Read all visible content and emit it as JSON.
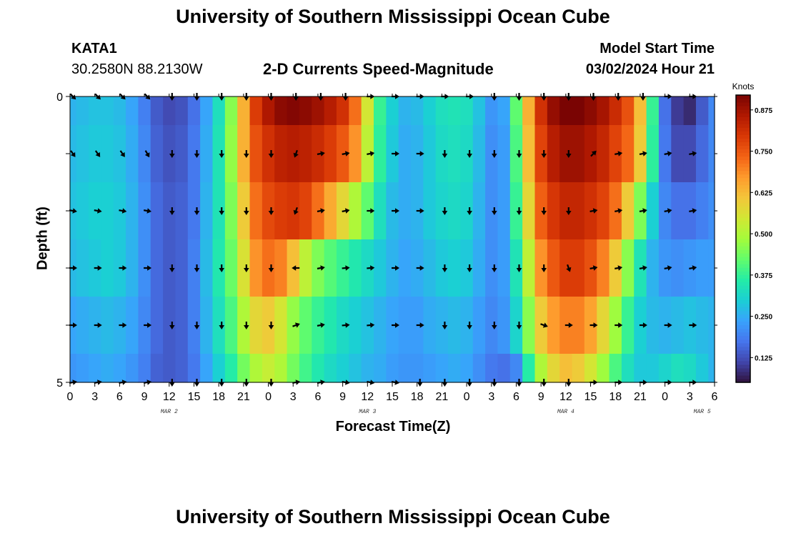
{
  "header": {
    "title": "University of Southern Mississippi Ocean Cube",
    "station": "KATA1",
    "coordinates": "30.2580N  88.2130W",
    "subtitle": "2-D Currents Speed-Magnitude",
    "model_start_label": "Model Start Time",
    "model_start_value": "03/02/2024 Hour 21"
  },
  "footer": {
    "title": "University of Southern Mississippi Ocean Cube"
  },
  "colors": {
    "scale": [
      "#30123b",
      "#4145ab",
      "#4675ed",
      "#39a2fc",
      "#1bcfd4",
      "#24eca6",
      "#61fc6c",
      "#a4fc3b",
      "#d1e834",
      "#f3c63a",
      "#fe9b2d",
      "#f36315",
      "#d93806",
      "#b11901",
      "#7a0403"
    ]
  },
  "chart_data": {
    "type": "heatmap",
    "title": "2-D Currents Speed-Magnitude",
    "xlabel": "Forecast Time(Z)",
    "ylabel": "Depth (ft)",
    "colorbar_label": "Knots",
    "colorbar_ticks": [
      "0.125",
      "0.250",
      "0.375",
      "0.500",
      "0.625",
      "0.750",
      "0.875"
    ],
    "colorbar_values": [
      0.125,
      0.25,
      0.375,
      0.5,
      0.625,
      0.75,
      0.875
    ],
    "crange": [
      0.05,
      0.92
    ],
    "y_ticks": [
      "0",
      "5"
    ],
    "ylim": [
      0,
      5
    ],
    "x_tick_labels": [
      "0",
      "3",
      "6",
      "9",
      "12",
      "15",
      "18",
      "21",
      "0",
      "3",
      "6",
      "9",
      "12",
      "15",
      "18",
      "21",
      "0",
      "3",
      "6",
      "9",
      "12",
      "15",
      "18",
      "21",
      "0",
      "3",
      "6"
    ],
    "date_labels": [
      {
        "label": "MAR 2",
        "index": 4
      },
      {
        "label": "MAR 3",
        "index": 12
      },
      {
        "label": "MAR 4",
        "index": 20
      },
      {
        "label": "MAR 5",
        "index": 25.5
      }
    ],
    "time_hours": [
      0,
      1.5,
      3,
      4.5,
      6,
      7.5,
      9,
      10.5,
      12,
      13.5,
      15,
      16.5,
      18,
      19.5,
      21,
      22.5,
      24,
      25.5,
      27,
      28.5,
      30,
      31.5,
      33,
      34.5,
      36,
      37.5,
      39,
      40.5,
      42,
      43.5,
      45,
      46.5,
      48,
      49.5,
      51,
      52.5,
      54,
      55.5,
      57,
      58.5,
      60,
      61.5,
      63,
      64.5,
      66,
      67.5,
      69,
      70.5,
      72,
      73.5,
      75,
      76.5,
      78
    ],
    "depth_layers": [
      "0-0.5",
      "0.5-1.5",
      "1.5-2.5",
      "2.5-3.5",
      "3.5-4.5",
      "4.5-5"
    ],
    "speed_knots": [
      [
        0.26,
        0.27,
        0.28,
        0.28,
        0.27,
        0.24,
        0.19,
        0.14,
        0.12,
        0.13,
        0.17,
        0.24,
        0.33,
        0.46,
        0.64,
        0.79,
        0.86,
        0.9,
        0.91,
        0.9,
        0.88,
        0.85,
        0.81,
        0.72,
        0.55,
        0.38,
        0.3,
        0.26,
        0.27,
        0.3,
        0.33,
        0.34,
        0.33,
        0.28,
        0.22,
        0.24,
        0.42,
        0.64,
        0.81,
        0.89,
        0.92,
        0.92,
        0.9,
        0.87,
        0.82,
        0.76,
        0.62,
        0.38,
        0.17,
        0.1,
        0.08,
        0.14,
        0.2
      ],
      [
        0.27,
        0.28,
        0.29,
        0.29,
        0.28,
        0.25,
        0.2,
        0.15,
        0.13,
        0.14,
        0.18,
        0.25,
        0.34,
        0.47,
        0.64,
        0.76,
        0.81,
        0.84,
        0.85,
        0.84,
        0.82,
        0.79,
        0.75,
        0.68,
        0.52,
        0.37,
        0.29,
        0.25,
        0.26,
        0.29,
        0.32,
        0.33,
        0.32,
        0.27,
        0.21,
        0.23,
        0.4,
        0.62,
        0.78,
        0.85,
        0.88,
        0.88,
        0.86,
        0.83,
        0.78,
        0.73,
        0.6,
        0.37,
        0.18,
        0.12,
        0.12,
        0.16,
        0.2
      ],
      [
        0.28,
        0.29,
        0.3,
        0.3,
        0.29,
        0.26,
        0.21,
        0.16,
        0.14,
        0.15,
        0.18,
        0.26,
        0.34,
        0.45,
        0.6,
        0.72,
        0.77,
        0.79,
        0.8,
        0.78,
        0.72,
        0.65,
        0.58,
        0.5,
        0.42,
        0.33,
        0.27,
        0.25,
        0.26,
        0.29,
        0.31,
        0.32,
        0.31,
        0.26,
        0.21,
        0.23,
        0.38,
        0.58,
        0.74,
        0.8,
        0.83,
        0.83,
        0.81,
        0.78,
        0.72,
        0.6,
        0.45,
        0.3,
        0.2,
        0.17,
        0.17,
        0.19,
        0.21
      ],
      [
        0.27,
        0.28,
        0.29,
        0.3,
        0.29,
        0.26,
        0.21,
        0.16,
        0.14,
        0.15,
        0.19,
        0.27,
        0.35,
        0.43,
        0.56,
        0.68,
        0.72,
        0.7,
        0.62,
        0.52,
        0.45,
        0.41,
        0.38,
        0.35,
        0.32,
        0.29,
        0.26,
        0.24,
        0.25,
        0.27,
        0.29,
        0.3,
        0.29,
        0.25,
        0.21,
        0.23,
        0.34,
        0.52,
        0.68,
        0.75,
        0.79,
        0.79,
        0.76,
        0.7,
        0.6,
        0.46,
        0.34,
        0.26,
        0.22,
        0.21,
        0.22,
        0.23,
        0.23
      ],
      [
        0.24,
        0.25,
        0.26,
        0.27,
        0.26,
        0.24,
        0.2,
        0.16,
        0.14,
        0.15,
        0.19,
        0.26,
        0.33,
        0.4,
        0.5,
        0.58,
        0.6,
        0.55,
        0.47,
        0.42,
        0.38,
        0.35,
        0.32,
        0.3,
        0.28,
        0.26,
        0.24,
        0.23,
        0.23,
        0.25,
        0.26,
        0.27,
        0.26,
        0.23,
        0.2,
        0.22,
        0.31,
        0.46,
        0.6,
        0.67,
        0.7,
        0.7,
        0.66,
        0.58,
        0.48,
        0.38,
        0.3,
        0.27,
        0.26,
        0.27,
        0.28,
        0.27,
        0.26
      ],
      [
        0.22,
        0.23,
        0.24,
        0.25,
        0.24,
        0.22,
        0.19,
        0.15,
        0.14,
        0.15,
        0.18,
        0.24,
        0.3,
        0.36,
        0.44,
        0.5,
        0.53,
        0.5,
        0.44,
        0.39,
        0.35,
        0.32,
        0.3,
        0.28,
        0.26,
        0.25,
        0.23,
        0.22,
        0.22,
        0.23,
        0.24,
        0.25,
        0.24,
        0.21,
        0.18,
        0.17,
        0.2,
        0.36,
        0.5,
        0.58,
        0.62,
        0.6,
        0.55,
        0.48,
        0.4,
        0.33,
        0.29,
        0.29,
        0.31,
        0.33,
        0.32,
        0.29,
        0.26
      ]
    ],
    "arrow_hours": [
      0,
      3,
      6,
      9,
      12,
      15,
      18,
      21,
      24,
      27,
      30,
      33,
      36,
      39,
      42,
      45,
      48,
      51,
      54,
      57,
      60,
      63,
      66,
      69,
      72,
      75
    ],
    "arrow_depths": [
      0,
      1,
      2,
      3,
      4,
      5
    ],
    "arrow_direction_deg": [
      [
        135,
        135,
        135,
        135,
        180,
        180,
        180,
        180,
        180,
        180,
        180,
        180,
        90,
        90,
        90,
        90,
        90,
        180,
        180,
        180,
        180,
        180,
        180,
        180,
        90,
        90
      ],
      [
        145,
        145,
        145,
        150,
        180,
        180,
        180,
        180,
        180,
        200,
        80,
        80,
        80,
        90,
        90,
        180,
        180,
        180,
        180,
        180,
        180,
        45,
        80,
        80,
        80,
        80
      ],
      [
        100,
        100,
        100,
        100,
        180,
        180,
        180,
        180,
        180,
        200,
        80,
        80,
        90,
        90,
        90,
        180,
        180,
        180,
        180,
        180,
        180,
        80,
        80,
        80,
        80,
        80
      ],
      [
        90,
        90,
        90,
        90,
        180,
        180,
        180,
        180,
        180,
        270,
        80,
        85,
        85,
        90,
        90,
        180,
        180,
        180,
        180,
        180,
        160,
        80,
        80,
        80,
        80,
        80
      ],
      [
        90,
        90,
        90,
        90,
        180,
        180,
        180,
        180,
        180,
        70,
        80,
        85,
        85,
        90,
        90,
        180,
        180,
        180,
        180,
        110,
        90,
        90,
        90,
        90,
        90,
        90
      ],
      [
        80,
        80,
        80,
        80,
        180,
        180,
        180,
        180,
        180,
        80,
        80,
        100,
        100,
        100,
        180,
        180,
        180,
        180,
        180,
        180,
        180,
        90,
        90,
        90,
        90,
        90
      ]
    ]
  }
}
